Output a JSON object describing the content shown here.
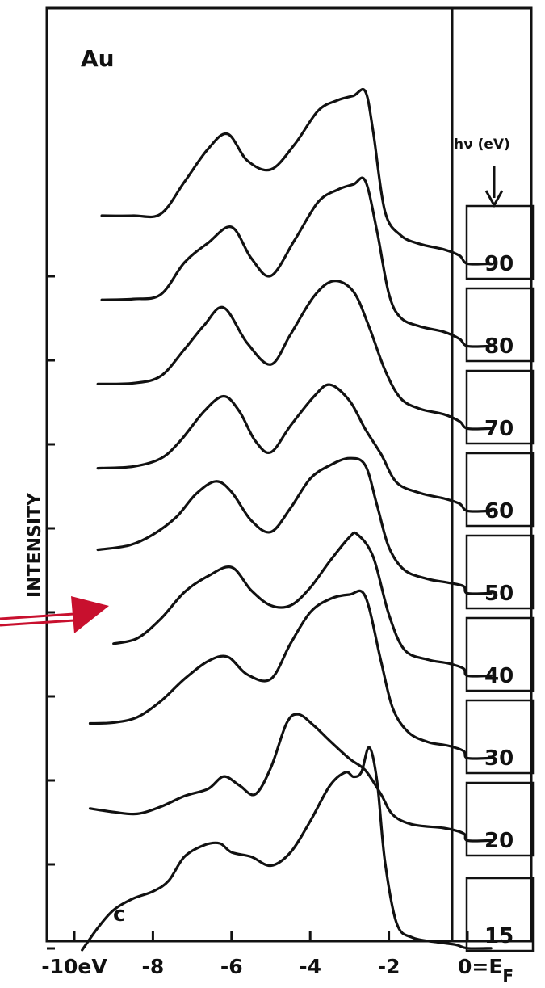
{
  "chart_data": {
    "type": "line",
    "title": "Au",
    "panel_label": "c",
    "xlabel": "",
    "ylabel": "INTENSITY",
    "x_unit": "eV",
    "xlim": [
      -10,
      0.6
    ],
    "x_ticks": [
      {
        "value": -10,
        "label": "-10eV"
      },
      {
        "value": -8,
        "label": "-8"
      },
      {
        "value": -6,
        "label": "-6"
      },
      {
        "value": -4,
        "label": "-4"
      },
      {
        "value": -2,
        "label": "-2"
      },
      {
        "value": 0,
        "label": "0=E"
      }
    ],
    "x_tick_subscript": "F",
    "photon_energy_header": "hν (eV)",
    "grid": false,
    "series": [
      {
        "name": "90",
        "points": [
          [
            -9.3,
            0.8
          ],
          [
            -8.5,
            0.8
          ],
          [
            -7.8,
            0.82
          ],
          [
            -7.2,
            1.18
          ],
          [
            -6.6,
            1.55
          ],
          [
            -6.1,
            1.72
          ],
          [
            -5.6,
            1.42
          ],
          [
            -5.0,
            1.32
          ],
          [
            -4.4,
            1.6
          ],
          [
            -3.8,
            1.98
          ],
          [
            -3.3,
            2.1
          ],
          [
            -2.9,
            2.15
          ],
          [
            -2.6,
            2.2
          ],
          [
            -2.4,
            1.75
          ],
          [
            -2.1,
            0.85
          ],
          [
            -1.7,
            0.58
          ],
          [
            -1.2,
            0.48
          ],
          [
            -0.6,
            0.42
          ],
          [
            -0.2,
            0.35
          ],
          [
            0.0,
            0.26
          ],
          [
            0.6,
            0.26
          ]
        ]
      },
      {
        "name": "80",
        "points": [
          [
            -9.3,
            0.78
          ],
          [
            -8.5,
            0.79
          ],
          [
            -7.8,
            0.84
          ],
          [
            -7.2,
            1.2
          ],
          [
            -6.6,
            1.42
          ],
          [
            -6.0,
            1.6
          ],
          [
            -5.5,
            1.25
          ],
          [
            -5.0,
            1.05
          ],
          [
            -4.4,
            1.45
          ],
          [
            -3.8,
            1.88
          ],
          [
            -3.3,
            2.02
          ],
          [
            -2.9,
            2.08
          ],
          [
            -2.6,
            2.12
          ],
          [
            -2.3,
            1.55
          ],
          [
            -2.0,
            0.85
          ],
          [
            -1.7,
            0.58
          ],
          [
            -1.2,
            0.48
          ],
          [
            -0.6,
            0.42
          ],
          [
            -0.2,
            0.34
          ],
          [
            0.0,
            0.26
          ],
          [
            0.6,
            0.26
          ]
        ]
      },
      {
        "name": "70",
        "points": [
          [
            -9.4,
            0.76
          ],
          [
            -8.5,
            0.77
          ],
          [
            -7.8,
            0.85
          ],
          [
            -7.2,
            1.15
          ],
          [
            -6.7,
            1.42
          ],
          [
            -6.2,
            1.62
          ],
          [
            -5.6,
            1.22
          ],
          [
            -5.0,
            0.98
          ],
          [
            -4.5,
            1.32
          ],
          [
            -3.9,
            1.75
          ],
          [
            -3.4,
            1.92
          ],
          [
            -2.9,
            1.8
          ],
          [
            -2.5,
            1.4
          ],
          [
            -2.1,
            0.92
          ],
          [
            -1.7,
            0.6
          ],
          [
            -1.2,
            0.48
          ],
          [
            -0.6,
            0.42
          ],
          [
            -0.2,
            0.34
          ],
          [
            0.0,
            0.26
          ],
          [
            0.6,
            0.26
          ]
        ]
      },
      {
        "name": "60",
        "points": [
          [
            -9.4,
            0.74
          ],
          [
            -8.5,
            0.76
          ],
          [
            -7.8,
            0.85
          ],
          [
            -7.3,
            1.05
          ],
          [
            -6.7,
            1.38
          ],
          [
            -6.2,
            1.55
          ],
          [
            -5.8,
            1.38
          ],
          [
            -5.4,
            1.05
          ],
          [
            -5.0,
            0.92
          ],
          [
            -4.5,
            1.22
          ],
          [
            -3.9,
            1.55
          ],
          [
            -3.5,
            1.68
          ],
          [
            -3.0,
            1.5
          ],
          [
            -2.6,
            1.18
          ],
          [
            -2.2,
            0.9
          ],
          [
            -1.8,
            0.58
          ],
          [
            -1.2,
            0.46
          ],
          [
            -0.6,
            0.4
          ],
          [
            -0.2,
            0.34
          ],
          [
            0.0,
            0.26
          ],
          [
            0.6,
            0.26
          ]
        ]
      },
      {
        "name": "50",
        "points": [
          [
            -9.4,
            0.75
          ],
          [
            -8.6,
            0.8
          ],
          [
            -8.0,
            0.92
          ],
          [
            -7.4,
            1.12
          ],
          [
            -6.9,
            1.38
          ],
          [
            -6.4,
            1.52
          ],
          [
            -6.0,
            1.4
          ],
          [
            -5.5,
            1.08
          ],
          [
            -5.0,
            0.95
          ],
          [
            -4.5,
            1.22
          ],
          [
            -4.0,
            1.55
          ],
          [
            -3.5,
            1.7
          ],
          [
            -3.0,
            1.78
          ],
          [
            -2.6,
            1.7
          ],
          [
            -2.3,
            1.25
          ],
          [
            -2.0,
            0.78
          ],
          [
            -1.6,
            0.52
          ],
          [
            -1.0,
            0.42
          ],
          [
            -0.5,
            0.38
          ],
          [
            -0.1,
            0.34
          ],
          [
            0.0,
            0.26
          ],
          [
            0.6,
            0.26
          ]
        ]
      },
      {
        "name": "40",
        "points": [
          [
            -9.0,
            0.62
          ],
          [
            -8.4,
            0.68
          ],
          [
            -7.8,
            0.9
          ],
          [
            -7.2,
            1.2
          ],
          [
            -6.6,
            1.38
          ],
          [
            -6.0,
            1.48
          ],
          [
            -5.5,
            1.22
          ],
          [
            -5.0,
            1.05
          ],
          [
            -4.5,
            1.05
          ],
          [
            -4.0,
            1.25
          ],
          [
            -3.5,
            1.55
          ],
          [
            -3.0,
            1.82
          ],
          [
            -2.8,
            1.85
          ],
          [
            -2.4,
            1.6
          ],
          [
            -2.0,
            0.95
          ],
          [
            -1.6,
            0.55
          ],
          [
            -1.0,
            0.44
          ],
          [
            -0.5,
            0.4
          ],
          [
            -0.1,
            0.34
          ],
          [
            0.0,
            0.26
          ],
          [
            0.6,
            0.26
          ]
        ]
      },
      {
        "name": "30",
        "points": [
          [
            -9.6,
            0.65
          ],
          [
            -9.0,
            0.66
          ],
          [
            -8.4,
            0.72
          ],
          [
            -7.8,
            0.9
          ],
          [
            -7.2,
            1.15
          ],
          [
            -6.6,
            1.35
          ],
          [
            -6.1,
            1.4
          ],
          [
            -5.6,
            1.2
          ],
          [
            -5.0,
            1.15
          ],
          [
            -4.5,
            1.55
          ],
          [
            -4.0,
            1.9
          ],
          [
            -3.5,
            2.05
          ],
          [
            -3.0,
            2.1
          ],
          [
            -2.6,
            2.08
          ],
          [
            -2.2,
            1.35
          ],
          [
            -1.9,
            0.82
          ],
          [
            -1.5,
            0.55
          ],
          [
            -1.0,
            0.44
          ],
          [
            -0.5,
            0.4
          ],
          [
            -0.1,
            0.34
          ],
          [
            0.0,
            0.26
          ],
          [
            0.6,
            0.26
          ]
        ]
      },
      {
        "name": "20",
        "points": [
          [
            -9.6,
            0.62
          ],
          [
            -9.0,
            0.58
          ],
          [
            -8.4,
            0.56
          ],
          [
            -7.8,
            0.64
          ],
          [
            -7.2,
            0.76
          ],
          [
            -6.6,
            0.84
          ],
          [
            -6.2,
            0.98
          ],
          [
            -5.8,
            0.88
          ],
          [
            -5.4,
            0.78
          ],
          [
            -5.0,
            1.08
          ],
          [
            -4.6,
            1.58
          ],
          [
            -4.3,
            1.68
          ],
          [
            -3.9,
            1.55
          ],
          [
            -3.5,
            1.38
          ],
          [
            -3.0,
            1.18
          ],
          [
            -2.6,
            1.05
          ],
          [
            -2.2,
            0.78
          ],
          [
            -1.9,
            0.55
          ],
          [
            -1.4,
            0.44
          ],
          [
            -0.6,
            0.4
          ],
          [
            -0.1,
            0.34
          ],
          [
            0.0,
            0.26
          ],
          [
            0.6,
            0.26
          ]
        ]
      },
      {
        "name": "15",
        "points": [
          [
            -9.8,
            0.1
          ],
          [
            -9.4,
            0.35
          ],
          [
            -9.0,
            0.55
          ],
          [
            -8.5,
            0.68
          ],
          [
            -8.0,
            0.76
          ],
          [
            -7.6,
            0.88
          ],
          [
            -7.2,
            1.15
          ],
          [
            -6.7,
            1.28
          ],
          [
            -6.3,
            1.3
          ],
          [
            -6.0,
            1.2
          ],
          [
            -5.5,
            1.15
          ],
          [
            -5.0,
            1.05
          ],
          [
            -4.5,
            1.2
          ],
          [
            -4.0,
            1.55
          ],
          [
            -3.5,
            1.95
          ],
          [
            -3.1,
            2.1
          ],
          [
            -2.9,
            2.05
          ],
          [
            -2.7,
            2.1
          ],
          [
            -2.5,
            2.38
          ],
          [
            -2.3,
            2.0
          ],
          [
            -2.1,
            1.1
          ],
          [
            -1.8,
            0.4
          ],
          [
            -1.4,
            0.24
          ],
          [
            -0.8,
            0.19
          ],
          [
            -0.3,
            0.16
          ],
          [
            0.0,
            0.12
          ],
          [
            0.6,
            0.12
          ]
        ]
      }
    ]
  }
}
